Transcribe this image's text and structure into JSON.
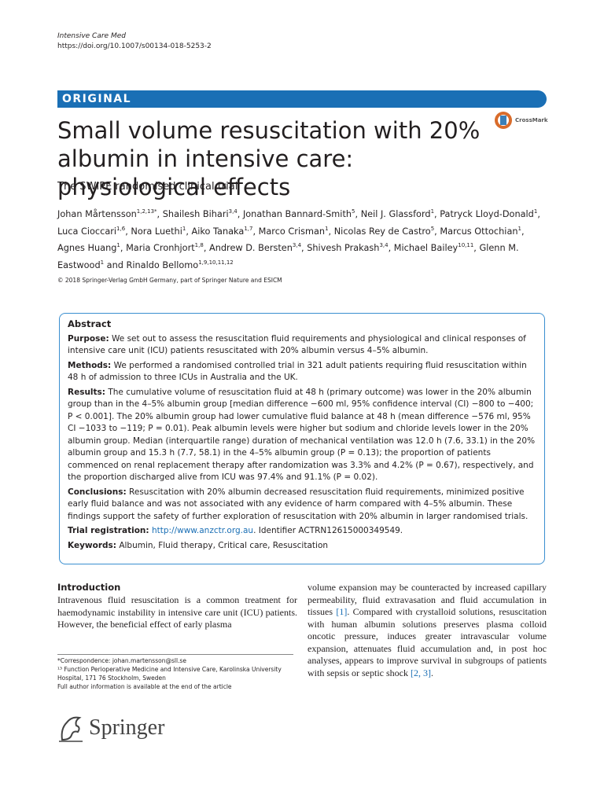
{
  "header": {
    "journal": "Intensive Care Med",
    "doi": "https://doi.org/10.1007/s00134-018-5253-2"
  },
  "banner": "ORIGINAL",
  "crossmark": "CrossMark",
  "title": "Small volume resuscitation with 20% albumin in intensive care: physiological effects",
  "subtitle": "The SWIPE randomised clinical trial",
  "authors": [
    {
      "name": "Johan Mårtensson",
      "sup": "1,2,13*",
      "after": ","
    },
    {
      "name": "Shailesh Bihari",
      "sup": "3,4",
      "after": ","
    },
    {
      "name": "Jonathan Bannard-Smith",
      "sup": "5",
      "after": ","
    },
    {
      "name": "Neil J. Glassford",
      "sup": "1",
      "after": ","
    },
    {
      "name": "Patryck Lloyd-Donald",
      "sup": "1",
      "after": ","
    },
    {
      "name": "Luca Cioccari",
      "sup": "1,6",
      "after": ","
    },
    {
      "name": "Nora Luethi",
      "sup": "1",
      "after": ","
    },
    {
      "name": "Aiko Tanaka",
      "sup": "1,7",
      "after": ","
    },
    {
      "name": "Marco Crisman",
      "sup": "1",
      "after": ","
    },
    {
      "name": "Nicolas Rey de Castro",
      "sup": "5",
      "after": ","
    },
    {
      "name": "Marcus Ottochian",
      "sup": "1",
      "after": ","
    },
    {
      "name": "Agnes Huang",
      "sup": "1",
      "after": ","
    },
    {
      "name": "Maria Cronhjort",
      "sup": "1,8",
      "after": ","
    },
    {
      "name": "Andrew D. Bersten",
      "sup": "3,4",
      "after": ","
    },
    {
      "name": "Shivesh Prakash",
      "sup": "3,4",
      "after": ","
    },
    {
      "name": "Michael Bailey",
      "sup": "10,11",
      "after": ","
    },
    {
      "name": "Glenn M. Eastwood",
      "sup": "1"
    },
    {
      "name": "and Rinaldo Bellomo",
      "sup": "1,9,10,11,12"
    }
  ],
  "copyright": "© 2018 Springer-Verlag GmbH Germany, part of Springer Nature and ESICM",
  "abstract": {
    "heading": "Abstract",
    "paragraphs": [
      {
        "label": "Purpose:",
        "text": "We set out to assess the resuscitation fluid requirements and physiological and clinical responses of intensive care unit (ICU) patients resuscitated with 20% albumin versus 4–5% albumin."
      },
      {
        "label": "Methods:",
        "text": "We performed a randomised controlled trial in 321 adult patients requiring fluid resuscitation within 48 h of admission to three ICUs in Australia and the UK."
      },
      {
        "label": "Results:",
        "text": "The cumulative volume of resuscitation fluid at 48 h (primary outcome) was lower in the 20% albumin group than in the 4–5% albumin group [median difference −600 ml, 95% confidence interval (CI) −800 to −400; P < 0.001]. The 20% albumin group had lower cumulative fluid balance at 48 h (mean difference −576 ml, 95% CI −1033 to −119; P = 0.01). Peak albumin levels were higher but sodium and chloride levels lower in the 20% albumin group. Median (interquartile range) duration of mechanical ventilation was 12.0 h (7.6, 33.1) in the 20% albumin group and 15.3 h (7.7, 58.1) in the 4–5% albumin group (P = 0.13); the proportion of patients commenced on renal replacement therapy after randomization was 3.3% and 4.2% (P = 0.67), respectively, and the proportion discharged alive from ICU was 97.4% and 91.1% (P = 0.02)."
      },
      {
        "label": "Conclusions:",
        "text": "Resuscitation with 20% albumin decreased resuscitation fluid requirements, minimized positive early fluid balance and was not associated with any evidence of harm compared with 4–5% albumin. These findings support the safety of further exploration of resuscitation with 20% albumin in larger randomised trials."
      }
    ],
    "trial": {
      "label": "Trial registration:",
      "link": "http://www.anzctr.org.au",
      "text": ". Identifier ACTRN12615000349549."
    },
    "keywords": {
      "label": "Keywords:",
      "text": "Albumin, Fluid therapy, Critical care, Resuscitation"
    }
  },
  "introduction": {
    "heading": "Introduction",
    "col1": "Intravenous fluid resuscitation is a common treatment for haemodynamic instability in intensive care unit (ICU) patients. However, the beneficial effect of early plasma",
    "col2": [
      {
        "text": "volume expansion may be counteracted by increased capillary permeability, fluid extravasation and fluid accumulation in tissues "
      },
      {
        "ref": "[1]"
      },
      {
        "text": ". Compared with crystalloid solutions, resuscitation with human albumin solutions preserves plasma colloid oncotic pressure, induces greater intravascular volume expansion, attenuates fluid accumulation and, in post hoc analyses, appears to improve survival in subgroups of patients with sepsis or septic shock "
      },
      {
        "ref": "[2, 3]"
      },
      {
        "text": "."
      }
    ]
  },
  "footnotes": [
    "*Correspondence: johan.martensson@sll.se",
    "¹³ Function Perioperative Medicine and Intensive Care, Karolinska University Hospital, 171 76 Stockholm, Sweden",
    "Full author information is available at the end of the article"
  ],
  "publisher": "Springer"
}
